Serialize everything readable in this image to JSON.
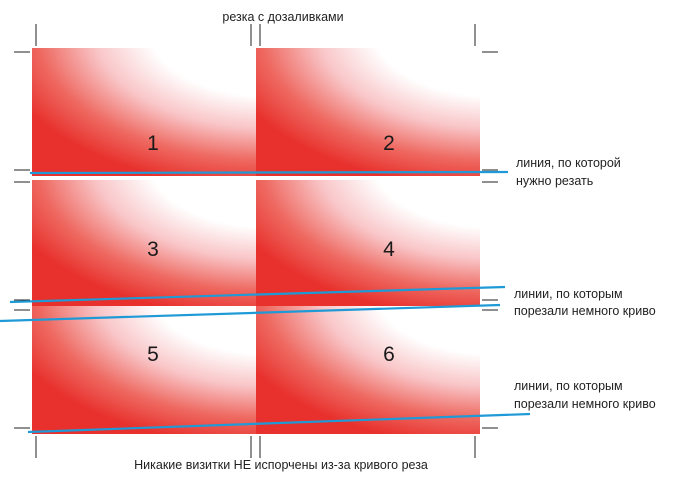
{
  "title": "резка с дозаливками",
  "footer": "Никакие визитки НЕ испорчены из-за кривого реза",
  "cards": [
    "1",
    "2",
    "3",
    "4",
    "5",
    "6"
  ],
  "annotations": {
    "correct_line": [
      "линия, по которой",
      "нужно резать"
    ],
    "crooked_line_1": [
      "линии, по которым",
      "порезали немного криво"
    ],
    "crooked_line_2": [
      "линии, по которым",
      "порезали немного криво"
    ]
  },
  "colors": {
    "bleed_red": "#e8302c",
    "card_white": "#ffffff",
    "cut_line": "#1f9ad6",
    "crop_mark": "#222222",
    "text": "#222222"
  }
}
